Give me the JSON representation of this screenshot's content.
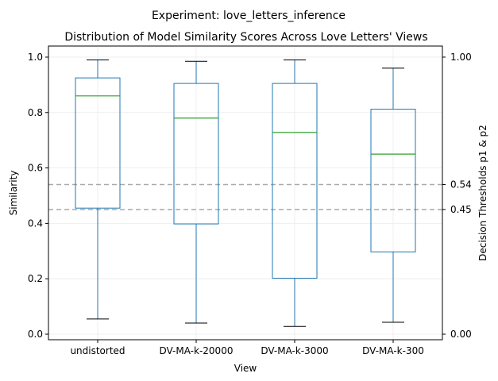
{
  "chart_data": {
    "type": "boxplot",
    "suptitle": "Experiment: love_letters_inference",
    "title": "Distribution of Model Similarity Scores Across Love Letters' Views",
    "xlabel": "View",
    "ylabel": "Similarity",
    "ylabel_right": "Decision Thresholds p1 & p2",
    "ylim": [
      -0.02,
      1.04
    ],
    "y_ticks": [
      "0.0",
      "0.2",
      "0.4",
      "0.6",
      "0.8",
      "1.0"
    ],
    "y_tick_values": [
      0.0,
      0.2,
      0.4,
      0.6,
      0.8,
      1.0
    ],
    "right_ticks": [
      "0.00",
      "0.45",
      "0.54",
      "1.00"
    ],
    "right_tick_values": [
      0.0,
      0.45,
      0.54,
      1.0
    ],
    "grid": true,
    "categories": [
      "undistorted",
      "DV-MA-k-20000",
      "DV-MA-k-3000",
      "DV-MA-k-300"
    ],
    "boxes": [
      {
        "whisker_low": 0.055,
        "q1": 0.455,
        "median": 0.86,
        "q3": 0.925,
        "whisker_high": 0.99
      },
      {
        "whisker_low": 0.04,
        "q1": 0.398,
        "median": 0.78,
        "q3": 0.905,
        "whisker_high": 0.985
      },
      {
        "whisker_low": 0.028,
        "q1": 0.202,
        "median": 0.728,
        "q3": 0.905,
        "whisker_high": 0.99
      },
      {
        "whisker_low": 0.043,
        "q1": 0.297,
        "median": 0.65,
        "q3": 0.812,
        "whisker_high": 0.96
      }
    ],
    "thresholds": [
      {
        "value": 0.54
      },
      {
        "value": 0.45
      }
    ],
    "colors": {
      "box": "#1f77b4",
      "median": "#2ca02c",
      "whisker_cap": "#000000",
      "threshold": "#a9a9a9",
      "grid": "#ebebeb"
    }
  }
}
